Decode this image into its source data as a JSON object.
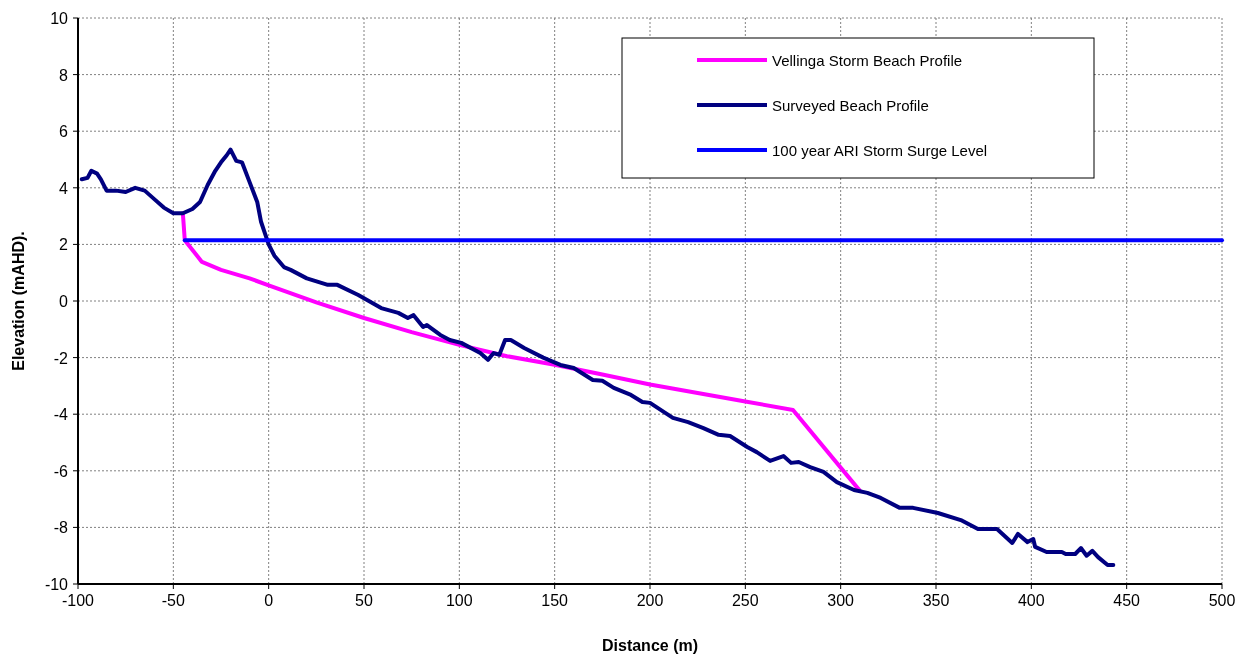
{
  "chart_data": {
    "type": "line",
    "xlabel": "Distance (m)",
    "ylabel": "Elevation (mAHD).",
    "xlim": [
      -100,
      500
    ],
    "ylim": [
      -10,
      10
    ],
    "xticks": [
      -100,
      -50,
      0,
      50,
      100,
      150,
      200,
      250,
      300,
      350,
      400,
      450,
      500
    ],
    "yticks": [
      -10,
      -8,
      -6,
      -4,
      -2,
      0,
      2,
      4,
      6,
      8,
      10
    ],
    "grid": true,
    "legend": "top right",
    "marker": "none",
    "line_style": "solid",
    "series": [
      {
        "name": "Vellinga Storm Beach Profile",
        "color": "#ff00ff",
        "x": [
          -45,
          -44,
          -35,
          -25,
          -10,
          0,
          25,
          50,
          75,
          100,
          125,
          150,
          175,
          200,
          225,
          250,
          275,
          310
        ],
        "values": [
          3.1,
          2.15,
          1.38,
          1.1,
          0.8,
          0.55,
          -0.05,
          -0.6,
          -1.1,
          -1.55,
          -1.95,
          -2.25,
          -2.6,
          -2.95,
          -3.25,
          -3.55,
          -3.85,
          -6.7
        ]
      },
      {
        "name": "Surveyed Beach Profile",
        "color": "#000080",
        "x": [
          -98,
          -95,
          -93,
          -90,
          -88,
          -85,
          -80,
          -75,
          -70,
          -65,
          -60,
          -55,
          -50,
          -45,
          -40,
          -36,
          -32,
          -28,
          -25,
          -22,
          -20,
          -17,
          -14,
          -10,
          -6,
          -4,
          -2,
          0,
          3,
          8,
          11.5,
          20,
          31,
          36,
          47,
          59,
          68,
          73,
          76,
          81,
          83,
          90,
          95,
          101,
          111,
          115,
          118,
          121,
          124,
          127,
          134,
          144,
          153,
          160,
          170,
          175,
          181,
          190,
          196,
          200,
          212,
          220,
          228,
          236,
          242,
          251,
          256,
          263,
          270,
          274,
          278,
          284,
          291,
          298,
          307,
          314,
          321,
          331,
          338,
          351,
          363,
          372,
          382,
          390,
          393,
          398,
          401,
          402,
          408,
          416,
          418,
          423,
          426,
          429,
          432,
          435,
          440,
          443
        ],
        "values": [
          4.3,
          4.35,
          4.6,
          4.5,
          4.3,
          3.9,
          3.9,
          3.85,
          4.0,
          3.9,
          3.6,
          3.3,
          3.1,
          3.1,
          3.25,
          3.5,
          4.1,
          4.6,
          4.9,
          5.15,
          5.35,
          4.95,
          4.9,
          4.2,
          3.5,
          2.8,
          2.4,
          2.0,
          1.6,
          1.2,
          1.1,
          0.8,
          0.57,
          0.57,
          0.21,
          -0.25,
          -0.42,
          -0.6,
          -0.5,
          -0.92,
          -0.85,
          -1.2,
          -1.38,
          -1.48,
          -1.84,
          -2.08,
          -1.84,
          -1.9,
          -1.38,
          -1.38,
          -1.66,
          -2.0,
          -2.26,
          -2.37,
          -2.79,
          -2.82,
          -3.07,
          -3.32,
          -3.57,
          -3.6,
          -4.13,
          -4.28,
          -4.49,
          -4.73,
          -4.77,
          -5.16,
          -5.34,
          -5.65,
          -5.48,
          -5.72,
          -5.69,
          -5.87,
          -6.04,
          -6.4,
          -6.68,
          -6.78,
          -6.96,
          -7.31,
          -7.31,
          -7.49,
          -7.74,
          -8.06,
          -8.06,
          -8.55,
          -8.23,
          -8.52,
          -8.41,
          -8.69,
          -8.87,
          -8.87,
          -8.94,
          -8.94,
          -8.73,
          -9.0,
          -8.83,
          -9.05,
          -9.33,
          -9.33
        ]
      },
      {
        "name": "100 year ARI Storm Surge Level",
        "color": "#0000ff",
        "x": [
          -44,
          500
        ],
        "values": [
          2.15,
          2.15
        ]
      }
    ]
  }
}
